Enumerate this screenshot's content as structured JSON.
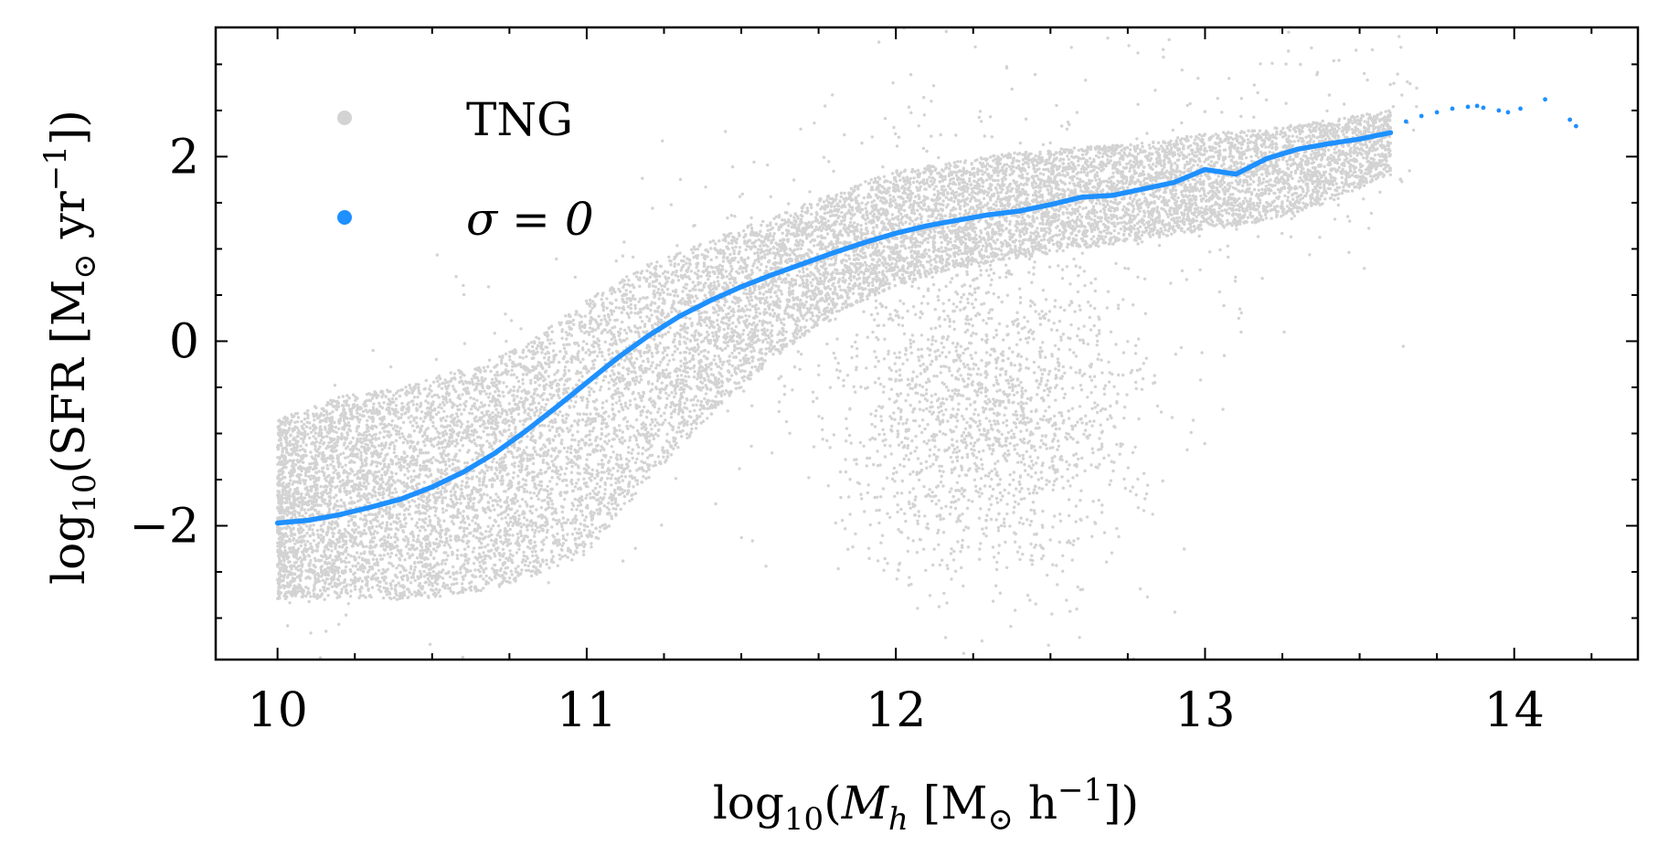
{
  "chart_data": {
    "type": "scatter",
    "title": "",
    "xlabel": "log10(Mh [M⊙ h−1])",
    "ylabel": "log10(SFR [M⊙ yr−1])",
    "xlim": [
      9.8,
      14.4
    ],
    "ylim": [
      -3.45,
      3.4
    ],
    "x_ticks": [
      10,
      11,
      12,
      13,
      14
    ],
    "x_tick_labels": [
      "10",
      "11",
      "12",
      "13",
      "14"
    ],
    "y_ticks": [
      -2,
      0,
      2
    ],
    "y_tick_labels": [
      "−2",
      "0",
      "2"
    ],
    "grid": false,
    "legend_position": "top-left",
    "series": [
      {
        "name": "TNG",
        "label": "TNG",
        "kind": "scatter-cloud",
        "color": "#d3d3d3",
        "envelope": {
          "x": [
            10.0,
            10.2,
            10.4,
            10.6,
            10.8,
            11.0,
            11.2,
            11.4,
            11.6,
            11.8,
            12.0,
            12.2,
            12.4,
            12.6,
            12.8,
            13.0,
            13.2,
            13.4,
            13.6
          ],
          "y_upper": [
            -0.85,
            -0.6,
            -0.5,
            -0.3,
            -0.05,
            0.45,
            0.85,
            1.1,
            1.35,
            1.6,
            1.85,
            1.95,
            2.05,
            2.1,
            2.15,
            2.25,
            2.3,
            2.4,
            2.5
          ],
          "y_lower": [
            -2.8,
            -2.8,
            -2.8,
            -2.75,
            -2.6,
            -2.3,
            -1.5,
            -0.8,
            -0.2,
            0.3,
            0.6,
            0.8,
            0.9,
            1.0,
            1.1,
            1.2,
            1.3,
            1.5,
            1.8
          ]
        },
        "quenched_cluster": {
          "x_center": 12.3,
          "y_center": -0.8,
          "x_spread": 0.45,
          "y_spread": 1.7
        }
      },
      {
        "name": "sigma=0",
        "label": "σ = 0",
        "kind": "median-line",
        "color": "#1e90ff",
        "x": [
          10.0,
          10.1,
          10.2,
          10.3,
          10.4,
          10.5,
          10.6,
          10.7,
          10.8,
          10.9,
          11.0,
          11.1,
          11.2,
          11.3,
          11.4,
          11.5,
          11.6,
          11.7,
          11.8,
          11.9,
          12.0,
          12.1,
          12.2,
          12.3,
          12.4,
          12.5,
          12.6,
          12.7,
          12.8,
          12.9,
          13.0,
          13.1,
          13.2,
          13.3,
          13.4,
          13.5,
          13.6
        ],
        "y": [
          -1.97,
          -1.94,
          -1.88,
          -1.8,
          -1.71,
          -1.58,
          -1.42,
          -1.22,
          -0.98,
          -0.72,
          -0.45,
          -0.18,
          0.06,
          0.27,
          0.44,
          0.59,
          0.72,
          0.84,
          0.96,
          1.07,
          1.17,
          1.25,
          1.31,
          1.37,
          1.41,
          1.48,
          1.56,
          1.58,
          1.65,
          1.72,
          1.86,
          1.81,
          1.98,
          2.08,
          2.14,
          2.19,
          2.26
        ]
      },
      {
        "name": "sigma=0-sparse",
        "kind": "sparse-points",
        "color": "#1e90ff",
        "x": [
          13.65,
          13.7,
          13.75,
          13.8,
          13.85,
          13.88,
          13.9,
          13.95,
          13.98,
          14.02,
          14.1,
          14.18,
          14.2
        ],
        "y": [
          2.38,
          2.44,
          2.48,
          2.52,
          2.54,
          2.55,
          2.53,
          2.5,
          2.48,
          2.52,
          2.62,
          2.4,
          2.33
        ]
      }
    ]
  }
}
